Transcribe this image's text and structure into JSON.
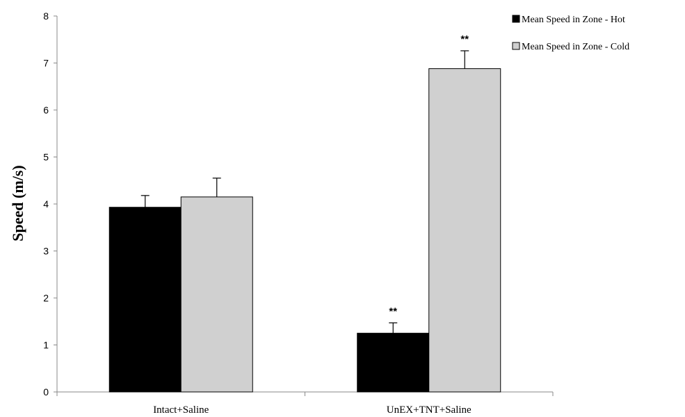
{
  "chart_data": {
    "type": "bar",
    "title": "",
    "xlabel": "",
    "ylabel": "Speed (m/s)",
    "ylim": [
      0,
      8
    ],
    "yticks": [
      0,
      1,
      2,
      3,
      4,
      5,
      6,
      7,
      8
    ],
    "categories": [
      "Intact+Saline",
      "UnEX+TNT+Saline"
    ],
    "series": [
      {
        "name": "Mean Speed in Zone - Hot",
        "color": "#000000",
        "values": [
          3.93,
          1.25
        ],
        "errors": [
          0.25,
          0.22
        ],
        "annotations": [
          "",
          "**"
        ]
      },
      {
        "name": "Mean Speed in Zone - Cold",
        "color": "#d0d0d0",
        "values": [
          4.15,
          6.88
        ],
        "errors": [
          0.4,
          0.38
        ],
        "annotations": [
          "",
          "**"
        ]
      }
    ],
    "legend_position": "top-right",
    "grid": false
  }
}
